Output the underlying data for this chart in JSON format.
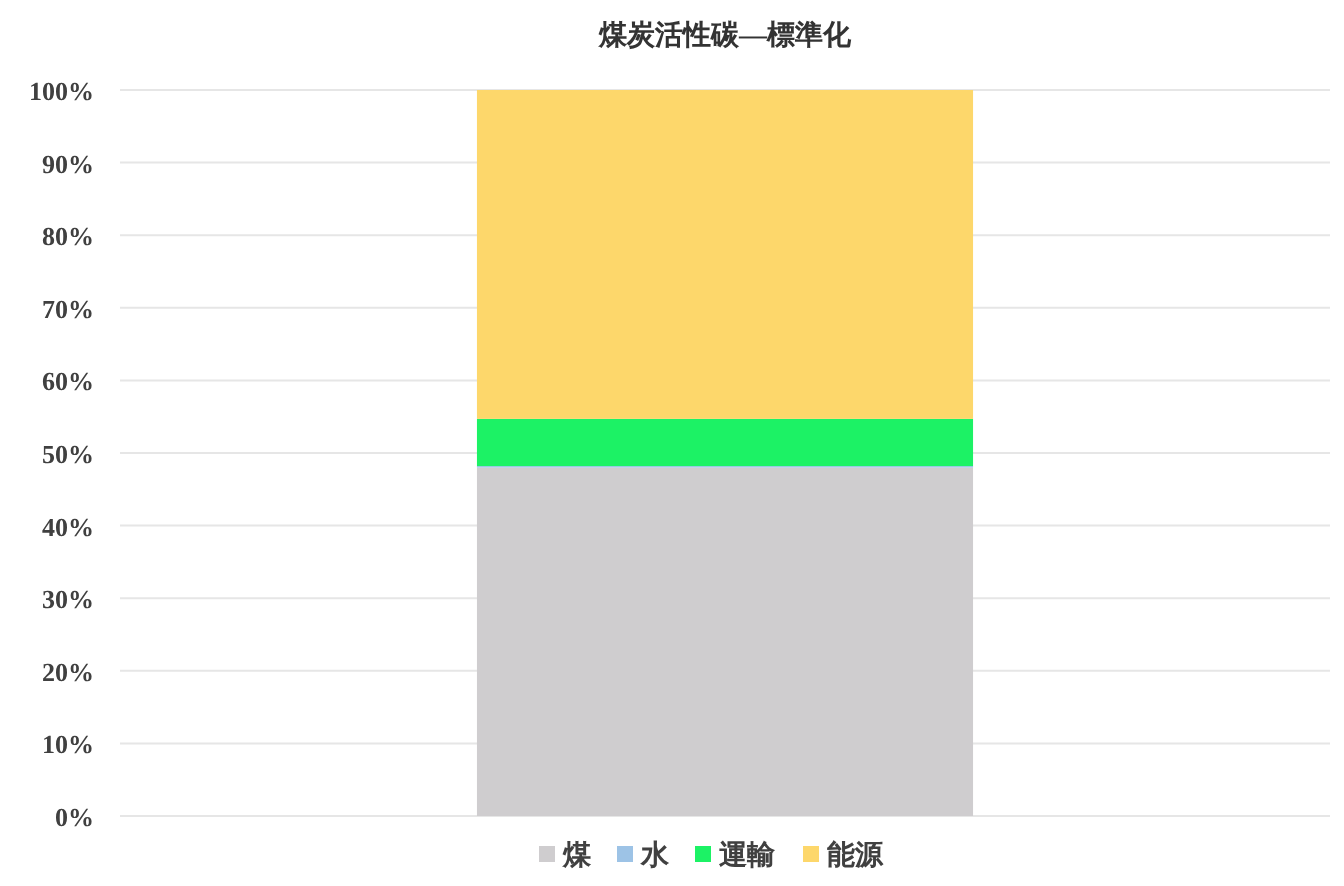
{
  "chart_data": {
    "type": "bar",
    "title": "煤炭活性碳—標準化",
    "stacked": true,
    "categories": [
      null
    ],
    "grid": "y",
    "legend": "bottom",
    "ylim": [
      0,
      100
    ],
    "yticks": [
      {
        "value": 0,
        "label": "0%"
      },
      {
        "value": 10,
        "label": "10%"
      },
      {
        "value": 20,
        "label": "20%"
      },
      {
        "value": 30,
        "label": "30%"
      },
      {
        "value": 40,
        "label": "40%"
      },
      {
        "value": 50,
        "label": "50%"
      },
      {
        "value": 60,
        "label": "60%"
      },
      {
        "value": 70,
        "label": "70%"
      },
      {
        "value": 80,
        "label": "80%"
      },
      {
        "value": 90,
        "label": "90%"
      },
      {
        "value": 100,
        "label": "100%"
      }
    ],
    "series": [
      {
        "name": "煤",
        "color": "#cfcdcf",
        "values": [
          48
        ]
      },
      {
        "name": "水",
        "color": "#9dc3e6",
        "values": [
          0.2
        ]
      },
      {
        "name": "運輸",
        "color": "#1cf265",
        "values": [
          6.5
        ]
      },
      {
        "name": "能源",
        "color": "#fdd76b",
        "values": [
          45.3
        ]
      }
    ]
  }
}
